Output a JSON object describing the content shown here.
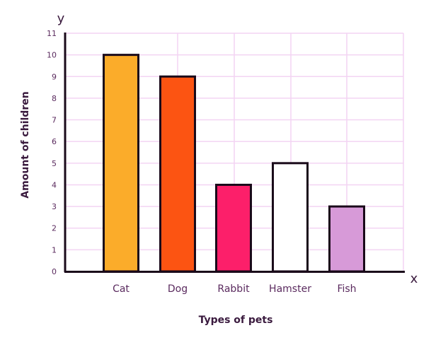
{
  "chart_data": {
    "type": "bar",
    "title": "",
    "categories": [
      "Cat",
      "Dog",
      "Rabbit",
      "Hamster",
      "Fish"
    ],
    "values": [
      10,
      9,
      4,
      5,
      3
    ],
    "colors": [
      "#fbac2a",
      "#fc5412",
      "#fc1f6a",
      "#ffffff",
      "#d79ad8"
    ],
    "xlabel": "Types of pets",
    "ylabel": "Amount of children",
    "x_axis_letter": "x",
    "y_axis_letter": "y",
    "ylim": [
      0,
      11
    ],
    "yticks": [
      0,
      1,
      2,
      3,
      4,
      5,
      6,
      7,
      8,
      9,
      10,
      11
    ],
    "grid": true,
    "grid_color": "#f3d4f3",
    "legend": "none"
  }
}
